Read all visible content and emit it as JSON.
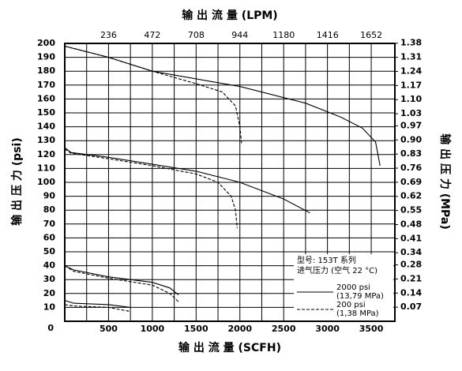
{
  "chart_data": {
    "type": "line",
    "title": "输 出 流 量 (LPM)",
    "xlabel": "输 出 流 量 (SCFH)",
    "ylabel": "输 出 压 力 (psi)",
    "y2label": "输 出 压 力 (MPa)",
    "annotations": [
      "型号: 153T 系列",
      "进气压力 (空气 22 °C)"
    ],
    "xlim": [
      0,
      3770
    ],
    "xticks": [
      500,
      1000,
      1500,
      2000,
      2500,
      3000,
      3500
    ],
    "xgrid": [
      250,
      500,
      750,
      1000,
      1250,
      1500,
      1750,
      2000,
      2250,
      2500,
      2750,
      3000,
      3250,
      3500
    ],
    "x2lim": [
      0,
      1779
    ],
    "x2ticks": [
      236,
      472,
      708,
      944,
      1180,
      1416,
      1652
    ],
    "ylim": [
      0,
      200
    ],
    "yticks": [
      0,
      10,
      20,
      30,
      40,
      50,
      60,
      70,
      80,
      90,
      100,
      110,
      120,
      130,
      140,
      150,
      160,
      170,
      180,
      190,
      200
    ],
    "y2lim": [
      0,
      1.379
    ],
    "y2ticks": [
      {
        "value": 0.07,
        "label": "0.07"
      },
      {
        "value": 0.14,
        "label": "0.14"
      },
      {
        "value": 0.21,
        "label": "0.21"
      },
      {
        "value": 0.28,
        "label": "0.28"
      },
      {
        "value": 0.34,
        "label": "0.34"
      },
      {
        "value": 0.41,
        "label": "0.41"
      },
      {
        "value": 0.48,
        "label": "0.48"
      },
      {
        "value": 0.55,
        "label": "0.55"
      },
      {
        "value": 0.62,
        "label": "0.62"
      },
      {
        "value": 0.69,
        "label": "0.69"
      },
      {
        "value": 0.76,
        "label": "0.76"
      },
      {
        "value": 0.83,
        "label": "0.83"
      },
      {
        "value": 0.9,
        "label": "0.90"
      },
      {
        "value": 0.97,
        "label": "0.97"
      },
      {
        "value": 1.03,
        "label": "1.03"
      },
      {
        "value": 1.1,
        "label": "1.10"
      },
      {
        "value": 1.17,
        "label": "1.17"
      },
      {
        "value": 1.24,
        "label": "1.24"
      },
      {
        "value": 1.31,
        "label": "1.31"
      },
      {
        "value": 1.38,
        "label": "1.38"
      }
    ],
    "grid": true,
    "series": [
      {
        "name": "2000 psi",
        "name2": "(13,79 MPa)",
        "color": "#000000",
        "dashed": false,
        "curves": [
          {
            "x": [
              0,
              500,
              1000,
              2000,
              2750,
              3150,
              3400,
              3550,
              3600
            ],
            "values": [
              198,
              190,
              180,
              169,
              157,
              147,
              139,
              129,
              112
            ]
          },
          {
            "x": [
              0,
              70,
              500,
              1000,
              1500,
              2000,
              2500,
              2800
            ],
            "values": [
              125,
              121.5,
              118,
              113,
              108,
              100,
              88,
              78
            ]
          },
          {
            "x": [
              0,
              100,
              500,
              1000,
              1200,
              1300
            ],
            "values": [
              40,
              37,
              32,
              28,
              24,
              19
            ]
          },
          {
            "x": [
              0,
              100,
              500,
              750
            ],
            "values": [
              15,
              13,
              12,
              10
            ]
          }
        ]
      },
      {
        "name": "200 psi",
        "name2": "(1,38 MPa)",
        "color": "#000000",
        "dashed": true,
        "curves": [
          {
            "x": [
              0,
              500,
              1000,
              1500,
              1800,
              1950,
              2000,
              2020
            ],
            "values": [
              198,
              190,
              180,
              171,
              165,
              155,
              140,
              127
            ]
          },
          {
            "x": [
              0,
              70,
              500,
              1000,
              1500,
              1750,
              1900,
              1950,
              1970
            ],
            "values": [
              124,
              121,
              117,
              112,
              106,
              100,
              90,
              80,
              67
            ]
          },
          {
            "x": [
              0,
              100,
              500,
              1000,
              1200,
              1300
            ],
            "values": [
              40,
              36,
              31,
              26,
              20,
              14
            ]
          },
          {
            "x": [
              0,
              100,
              500,
              750
            ],
            "values": [
              12,
              11,
              10,
              7
            ]
          }
        ]
      }
    ]
  }
}
